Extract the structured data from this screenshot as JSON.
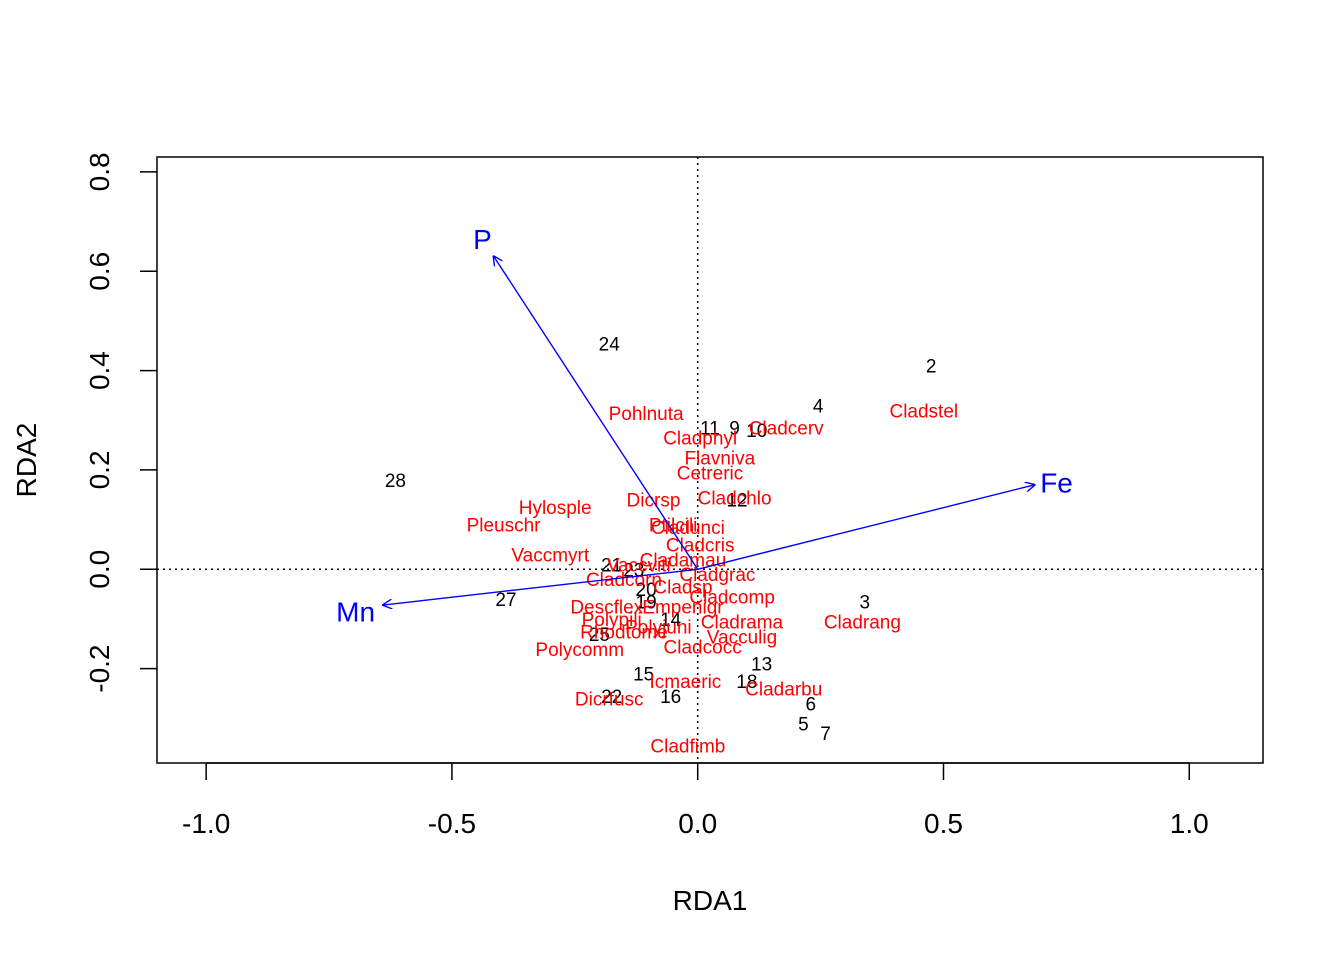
{
  "chart_data": {
    "type": "scatter",
    "title": "",
    "xlabel": "RDA1",
    "ylabel": "RDA2",
    "xlim": [
      -1.1,
      1.15
    ],
    "ylim": [
      -0.39,
      0.83
    ],
    "x_ticks": [
      "-1.0",
      "-0.5",
      "0.0",
      "0.5",
      "1.0"
    ],
    "x_tick_values": [
      -1.0,
      -0.5,
      0.0,
      0.5,
      1.0
    ],
    "y_ticks": [
      "-0.2",
      "0.0",
      "0.2",
      "0.4",
      "0.6",
      "0.8"
    ],
    "y_tick_values": [
      -0.2,
      0.0,
      0.2,
      0.4,
      0.6,
      0.8
    ],
    "reference_lines": {
      "x": 0,
      "y": 0,
      "style": "dotted"
    },
    "grid": false,
    "colors": {
      "sites": "#000000",
      "species": "#ff0000",
      "arrows": "#0000ff"
    },
    "sites": [
      {
        "label": "2",
        "x": 0.475,
        "y": 0.41
      },
      {
        "label": "3",
        "x": 0.34,
        "y": -0.065
      },
      {
        "label": "4",
        "x": 0.245,
        "y": 0.33
      },
      {
        "label": "5",
        "x": 0.215,
        "y": -0.31
      },
      {
        "label": "6",
        "x": 0.23,
        "y": -0.27
      },
      {
        "label": "7",
        "x": 0.26,
        "y": -0.33
      },
      {
        "label": "9",
        "x": 0.075,
        "y": 0.285
      },
      {
        "label": "10",
        "x": 0.12,
        "y": 0.28
      },
      {
        "label": "11",
        "x": 0.025,
        "y": 0.285
      },
      {
        "label": "12",
        "x": 0.08,
        "y": 0.14
      },
      {
        "label": "13",
        "x": 0.13,
        "y": -0.19
      },
      {
        "label": "14",
        "x": -0.055,
        "y": -0.1
      },
      {
        "label": "15",
        "x": -0.11,
        "y": -0.21
      },
      {
        "label": "16",
        "x": -0.055,
        "y": -0.255
      },
      {
        "label": "18",
        "x": 0.1,
        "y": -0.225
      },
      {
        "label": "19",
        "x": -0.105,
        "y": -0.065
      },
      {
        "label": "20",
        "x": -0.105,
        "y": -0.04
      },
      {
        "label": "21",
        "x": -0.175,
        "y": 0.01
      },
      {
        "label": "22",
        "x": -0.175,
        "y": -0.255
      },
      {
        "label": "23",
        "x": -0.13,
        "y": 0.0
      },
      {
        "label": "24",
        "x": -0.18,
        "y": 0.455
      },
      {
        "label": "25",
        "x": -0.2,
        "y": -0.13
      },
      {
        "label": "27",
        "x": -0.39,
        "y": -0.06
      },
      {
        "label": "28",
        "x": -0.615,
        "y": 0.18
      }
    ],
    "species": [
      {
        "label": "Cladstel",
        "x": 0.46,
        "y": 0.32
      },
      {
        "label": "Cladcerv",
        "x": 0.18,
        "y": 0.285
      },
      {
        "label": "Pohlnuta",
        "x": -0.105,
        "y": 0.315
      },
      {
        "label": "Cladphyl",
        "x": 0.005,
        "y": 0.265
      },
      {
        "label": "Flavniva",
        "x": 0.045,
        "y": 0.225
      },
      {
        "label": "Cetreric",
        "x": 0.025,
        "y": 0.195
      },
      {
        "label": "Cladchlo",
        "x": 0.075,
        "y": 0.145
      },
      {
        "label": "Dicrsp",
        "x": -0.09,
        "y": 0.14
      },
      {
        "label": "Hylosple",
        "x": -0.29,
        "y": 0.125
      },
      {
        "label": "Pleuschr",
        "x": -0.395,
        "y": 0.09
      },
      {
        "label": "Ptilcili",
        "x": -0.05,
        "y": 0.09
      },
      {
        "label": "Cladunci",
        "x": -0.02,
        "y": 0.085
      },
      {
        "label": "Cladcris",
        "x": 0.005,
        "y": 0.05
      },
      {
        "label": "Vaccmyrt",
        "x": -0.3,
        "y": 0.03
      },
      {
        "label": "Cladamau",
        "x": -0.03,
        "y": 0.02
      },
      {
        "label": "Vaccviti",
        "x": -0.12,
        "y": 0.01
      },
      {
        "label": "Cladgrac",
        "x": 0.04,
        "y": -0.01
      },
      {
        "label": "Cladcorn",
        "x": -0.15,
        "y": -0.02
      },
      {
        "label": "Cladsp",
        "x": -0.03,
        "y": -0.035
      },
      {
        "label": "Cladcomp",
        "x": 0.07,
        "y": -0.055
      },
      {
        "label": "Descflex",
        "x": -0.185,
        "y": -0.075
      },
      {
        "label": "Empenigr",
        "x": -0.03,
        "y": -0.075
      },
      {
        "label": "Polypili",
        "x": -0.175,
        "y": -0.1
      },
      {
        "label": "Cladrama",
        "x": 0.09,
        "y": -0.105
      },
      {
        "label": "Polyjuni",
        "x": -0.08,
        "y": -0.115
      },
      {
        "label": "Rhodtome",
        "x": -0.15,
        "y": -0.125
      },
      {
        "label": "Vacculig",
        "x": 0.09,
        "y": -0.135
      },
      {
        "label": "Cladcocc",
        "x": 0.01,
        "y": -0.155
      },
      {
        "label": "Polycomm",
        "x": -0.24,
        "y": -0.16
      },
      {
        "label": "Cladrang",
        "x": 0.335,
        "y": -0.105
      },
      {
        "label": "Icmaeric",
        "x": -0.025,
        "y": -0.225
      },
      {
        "label": "Cladarbu",
        "x": 0.175,
        "y": -0.24
      },
      {
        "label": "Dicrfusc",
        "x": -0.18,
        "y": -0.26
      },
      {
        "label": "Cladfimb",
        "x": -0.02,
        "y": -0.355
      }
    ],
    "arrows": [
      {
        "label": "P",
        "x": -0.415,
        "y": 0.63,
        "label_x": -0.438,
        "label_y": 0.665
      },
      {
        "label": "Fe",
        "x": 0.685,
        "y": 0.17,
        "label_x": 0.73,
        "label_y": 0.175
      },
      {
        "label": "Mn",
        "x": -0.64,
        "y": -0.072,
        "label_x": -0.696,
        "label_y": -0.085
      }
    ]
  }
}
